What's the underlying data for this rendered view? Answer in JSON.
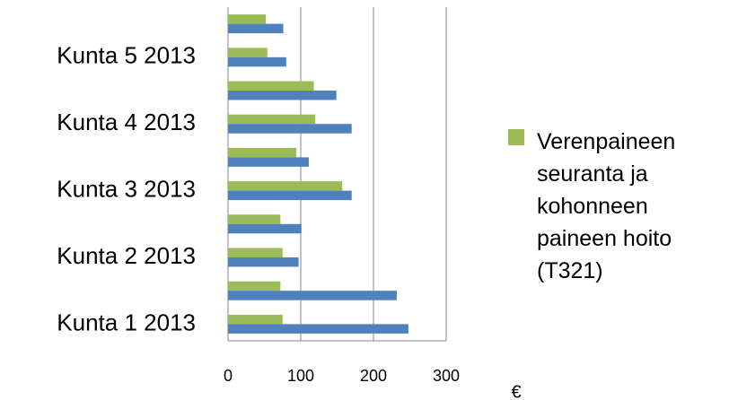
{
  "chart_data": {
    "type": "hbar",
    "categories": [
      "Kunta 1 2013",
      null,
      "Kunta 2 2013",
      null,
      "Kunta 3 2013",
      null,
      "Kunta 4 2013",
      null,
      "Kunta 5 2013",
      null
    ],
    "series": [
      {
        "name": "Verenpaineen seuranta ja kohonneen paineen hoito (T321)",
        "color": "#9bbb59",
        "values": [
          75,
          72,
          75,
          72,
          157,
          94,
          120,
          118,
          54,
          52
        ]
      },
      {
        "color": "#4f81bd",
        "values": [
          248,
          232,
          97,
          101,
          170,
          111,
          170,
          149,
          80,
          76
        ]
      }
    ],
    "xlabel": "€",
    "xlim": [
      0,
      300
    ],
    "xticks": [
      0,
      100,
      200,
      300
    ],
    "grid": true,
    "legend": "right"
  }
}
